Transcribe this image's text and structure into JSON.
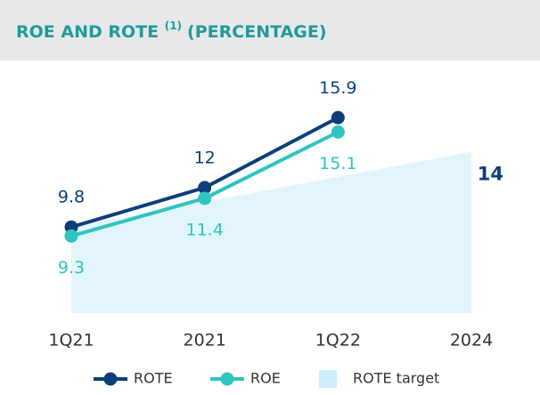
{
  "chart_data": {
    "type": "line",
    "title": "ROE AND ROTE",
    "title_note": "(1)",
    "title_suffix": "(PERCENTAGE)",
    "categories": [
      "1Q21",
      "2021",
      "1Q22",
      "2024"
    ],
    "series": [
      {
        "name": "ROTE",
        "color": "#0b3f7a",
        "values": [
          9.8,
          12.0,
          15.9,
          null
        ]
      },
      {
        "name": "ROE",
        "color": "#2ec4c0",
        "values": [
          9.3,
          11.4,
          15.1,
          null
        ]
      }
    ],
    "target": {
      "name": "ROTE target",
      "color": "#e3f5fc",
      "label_color": "#0b3f7a",
      "values": [
        null,
        null,
        null,
        14.0
      ]
    },
    "ylim": [
      5,
      17.5
    ]
  }
}
